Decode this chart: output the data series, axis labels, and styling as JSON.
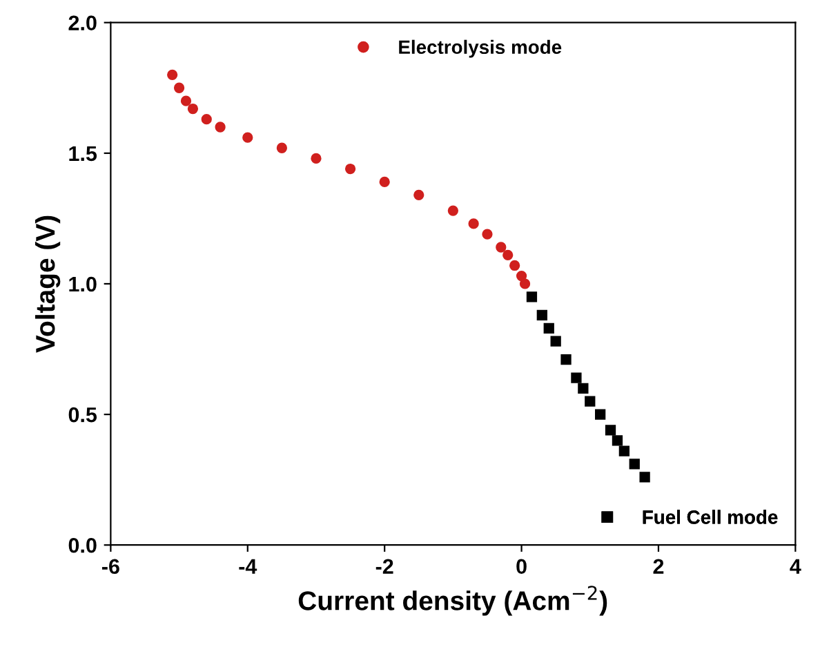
{
  "chart_data": {
    "type": "scatter",
    "xlabel": "Current density (Acm$^{−2}$)",
    "ylabel": "Voltage (V)",
    "xlim": [
      -6,
      4
    ],
    "xticks": [
      -6,
      -4,
      -2,
      0,
      2,
      4
    ],
    "ylim": [
      0,
      2
    ],
    "yticks": [
      {
        "value": 0,
        "label": "0.0"
      },
      {
        "value": 0.5,
        "label": "0.5"
      },
      {
        "value": 1,
        "label": "1.0"
      },
      {
        "value": 1.5,
        "label": "1.5"
      },
      {
        "value": 2,
        "label": "2.0"
      }
    ],
    "grid": false,
    "legend": [
      "top",
      "bottom right"
    ],
    "series": [
      {
        "name": "Electrolysis mode",
        "color": "#d0201e",
        "marker": "circle",
        "x": [
          -5.1,
          -5.0,
          -4.9,
          -4.8,
          -4.6,
          -4.4,
          -4.0,
          -3.5,
          -3.0,
          -2.5,
          -2.0,
          -1.5,
          -1.0,
          -0.7,
          -0.5,
          -0.3,
          -0.2,
          -0.1,
          0.0,
          0.05
        ],
        "values": [
          1.8,
          1.75,
          1.7,
          1.67,
          1.63,
          1.6,
          1.56,
          1.52,
          1.48,
          1.44,
          1.39,
          1.34,
          1.28,
          1.23,
          1.19,
          1.14,
          1.11,
          1.07,
          1.03,
          1.0
        ]
      },
      {
        "name": "Fuel Cell mode",
        "color": "#000000",
        "marker": "square",
        "x": [
          0.15,
          0.3,
          0.4,
          0.5,
          0.65,
          0.8,
          0.9,
          1.0,
          1.15,
          1.3,
          1.4,
          1.5,
          1.65,
          1.8
        ],
        "values": [
          0.95,
          0.88,
          0.83,
          0.78,
          0.71,
          0.64,
          0.6,
          0.55,
          0.5,
          0.44,
          0.4,
          0.36,
          0.31,
          0.26
        ]
      }
    ]
  }
}
